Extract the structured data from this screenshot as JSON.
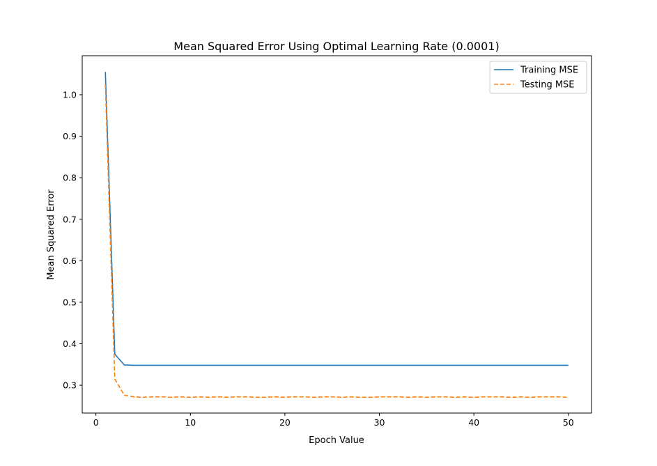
{
  "chart_data": {
    "type": "line",
    "title": "Mean Squared Error Using Optimal Learning Rate (0.0001)",
    "xlabel": "Epoch Value",
    "ylabel": "Mean Squared Error",
    "xlim": [
      -1.45,
      52.45
    ],
    "ylim": [
      0.233,
      1.094
    ],
    "xticks": [
      0,
      10,
      20,
      30,
      40,
      50
    ],
    "yticks": [
      0.3,
      0.4,
      0.5,
      0.6,
      0.7,
      0.8,
      0.9,
      1.0
    ],
    "xtick_labels": [
      "0",
      "10",
      "20",
      "30",
      "40",
      "50"
    ],
    "ytick_labels": [
      "0.3",
      "0.4",
      "0.5",
      "0.6",
      "0.7",
      "0.8",
      "0.9",
      "1.0"
    ],
    "grid": false,
    "legend": "top-right",
    "x": [
      1,
      2,
      3,
      4,
      5,
      6,
      7,
      8,
      9,
      10,
      11,
      12,
      13,
      14,
      15,
      16,
      17,
      18,
      19,
      20,
      21,
      22,
      23,
      24,
      25,
      26,
      27,
      28,
      29,
      30,
      31,
      32,
      33,
      34,
      35,
      36,
      37,
      38,
      39,
      40,
      41,
      42,
      43,
      44,
      45,
      46,
      47,
      48,
      49,
      50
    ],
    "series": [
      {
        "name": "Training MSE",
        "color": "#1f77b4",
        "style": "solid",
        "values": [
          1.055,
          0.375,
          0.349,
          0.348,
          0.348,
          0.348,
          0.348,
          0.348,
          0.348,
          0.348,
          0.348,
          0.348,
          0.348,
          0.348,
          0.348,
          0.348,
          0.348,
          0.348,
          0.348,
          0.348,
          0.348,
          0.348,
          0.348,
          0.348,
          0.348,
          0.348,
          0.348,
          0.348,
          0.348,
          0.348,
          0.348,
          0.348,
          0.348,
          0.348,
          0.348,
          0.348,
          0.348,
          0.348,
          0.348,
          0.348,
          0.348,
          0.348,
          0.348,
          0.348,
          0.348,
          0.348,
          0.348,
          0.348,
          0.348,
          0.348
        ]
      },
      {
        "name": "Testing MSE",
        "color": "#ff7f0e",
        "style": "dashed",
        "values": [
          1.025,
          0.315,
          0.276,
          0.272,
          0.271,
          0.272,
          0.272,
          0.271,
          0.272,
          0.271,
          0.272,
          0.271,
          0.272,
          0.271,
          0.272,
          0.272,
          0.271,
          0.271,
          0.272,
          0.271,
          0.272,
          0.272,
          0.271,
          0.272,
          0.272,
          0.271,
          0.272,
          0.271,
          0.271,
          0.272,
          0.272,
          0.272,
          0.271,
          0.272,
          0.271,
          0.272,
          0.272,
          0.271,
          0.272,
          0.271,
          0.272,
          0.272,
          0.272,
          0.271,
          0.272,
          0.271,
          0.272,
          0.272,
          0.272,
          0.271
        ]
      }
    ]
  }
}
